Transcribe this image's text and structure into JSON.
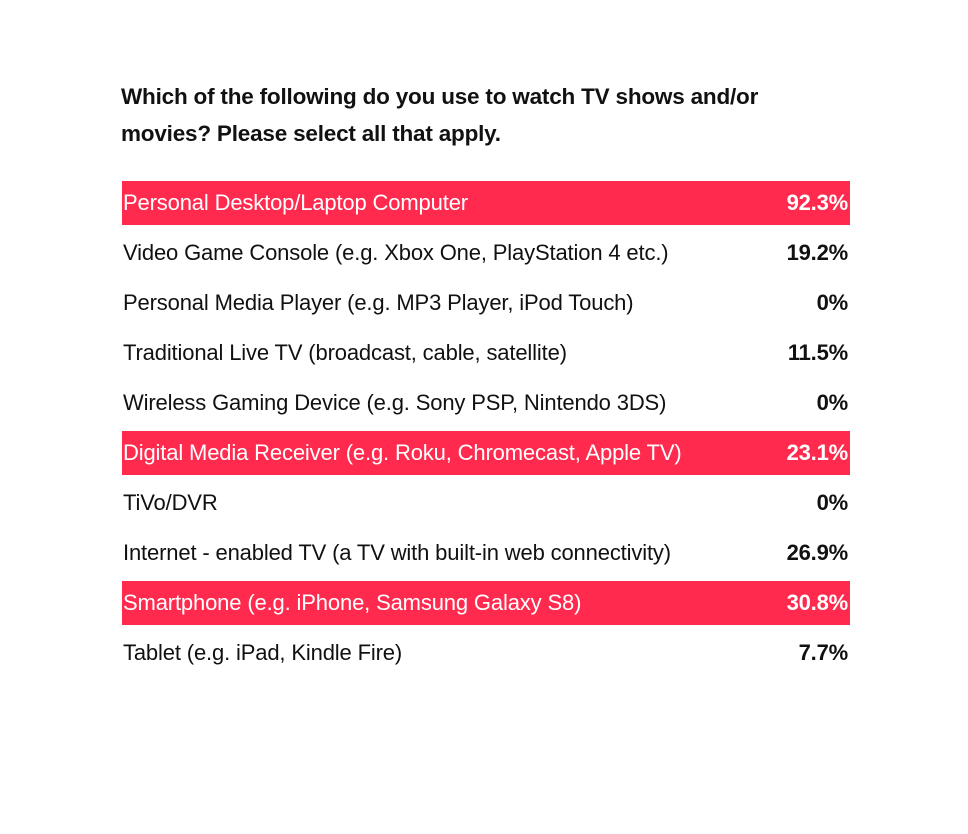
{
  "chart_data": {
    "type": "table",
    "title": "Which of the following do you use to watch TV shows and/or movies? Please select all that apply.",
    "highlight_color": "#ff2a4e",
    "rows": [
      {
        "label": "Personal Desktop/Laptop Computer",
        "value": "92.3%",
        "highlight": true
      },
      {
        "label": "Video Game Console (e.g. Xbox One, PlayStation 4 etc.)",
        "value": "19.2%",
        "highlight": false
      },
      {
        "label": "Personal Media Player (e.g. MP3 Player, iPod Touch)",
        "value": "0%",
        "highlight": false
      },
      {
        "label": "Traditional Live TV (broadcast, cable, satellite)",
        "value": "11.5%",
        "highlight": false
      },
      {
        "label": "Wireless Gaming Device (e.g. Sony PSP, Nintendo 3DS)",
        "value": "0%",
        "highlight": false
      },
      {
        "label": "Digital Media Receiver (e.g. Roku, Chromecast, Apple TV)",
        "value": "23.1%",
        "highlight": true
      },
      {
        "label": "TiVo/DVR",
        "value": "0%",
        "highlight": false
      },
      {
        "label": "Internet - enabled TV (a TV with built-in web connectivity)",
        "value": "26.9%",
        "highlight": false
      },
      {
        "label": "Smartphone (e.g. iPhone, Samsung Galaxy S8)",
        "value": "30.8%",
        "highlight": true
      },
      {
        "label": "Tablet (e.g. iPad, Kindle Fire)",
        "value": "7.7%",
        "highlight": false
      }
    ]
  }
}
